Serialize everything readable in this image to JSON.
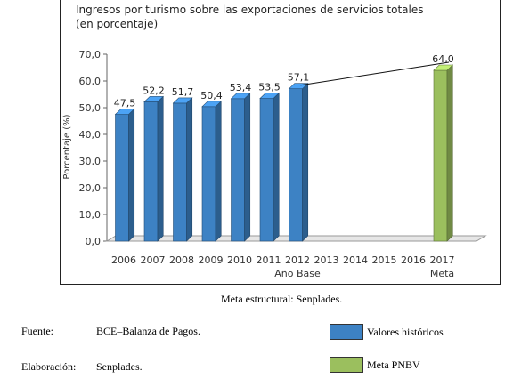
{
  "chart_data": {
    "type": "bar",
    "title": "Ingresos por turismo sobre las exportaciones de servicios totales",
    "subtitle": "(en porcentaje)",
    "ylabel": "Porcentaje (%)",
    "xlabel": "",
    "ylim": [
      0,
      70
    ],
    "yticks": [
      "0,0",
      "10,0",
      "20,0",
      "30,0",
      "40,0",
      "50,0",
      "60,0",
      "70,0"
    ],
    "categories": [
      "2006",
      "2007",
      "2008",
      "2009",
      "2010",
      "2011",
      "2012",
      "2013",
      "2014",
      "2015",
      "2016",
      "2017"
    ],
    "sublabels": {
      "2012": "Año Base",
      "2017": "Meta"
    },
    "series": [
      {
        "name": "Valores históricos",
        "color": "#3d82c4",
        "values": [
          47.5,
          52.2,
          51.7,
          50.4,
          53.4,
          53.5,
          57.1,
          null,
          null,
          null,
          null,
          null
        ],
        "labels": [
          "47,5",
          "52,2",
          "51,7",
          "50,4",
          "53,4",
          "53,5",
          "57,1",
          "",
          "",
          "",
          "",
          ""
        ]
      },
      {
        "name": "Meta PNBV",
        "color": "#9bbf5e",
        "values": [
          null,
          null,
          null,
          null,
          null,
          null,
          null,
          null,
          null,
          null,
          null,
          64.0
        ],
        "labels": [
          "",
          "",
          "",
          "",
          "",
          "",
          "",
          "",
          "",
          "",
          "",
          "64,0"
        ]
      }
    ],
    "trend_line": {
      "from": "2012",
      "to": "2017"
    },
    "grid": false,
    "legend": "bottom-right"
  },
  "captions": {
    "meta_estructural": "Meta estructural: Senplades.",
    "fuente_label": "Fuente:",
    "fuente_value": "BCE–Balanza de Pagos.",
    "elaboracion_label": "Elaboración:",
    "elaboracion_value": "Senplades."
  },
  "legend": {
    "historicos": "Valores históricos",
    "meta": "Meta PNBV"
  }
}
